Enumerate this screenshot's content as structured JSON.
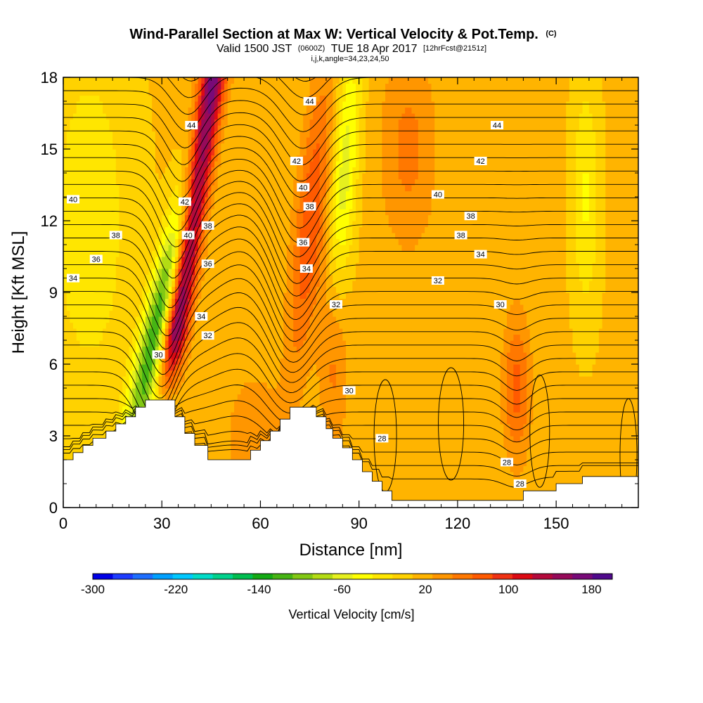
{
  "title": {
    "main": "Wind-Parallel Section at Max W: Vertical Velocity & Pot.Temp.",
    "main_suffix": "(C)",
    "valid_a": "Valid 1500 JST",
    "valid_b": "(0600Z)",
    "valid_c": "TUE 18 Apr 2017",
    "valid_d": "[12hrFcst@2151z]",
    "params": "i,j,k,angle=34,23,24,50"
  },
  "chart_data": {
    "type": "heatmap",
    "xlabel": "Distance [nm]",
    "ylabel": "Height [Kft MSL]",
    "xlim": [
      0,
      175
    ],
    "ylim": [
      0,
      18
    ],
    "x_ticks": [
      0,
      30,
      60,
      90,
      120,
      150
    ],
    "x_tick_labels": [
      "0",
      "30",
      "60",
      "90",
      "120",
      "150"
    ],
    "y_ticks": [
      0,
      3,
      6,
      9,
      12,
      15,
      18
    ],
    "y_tick_labels": [
      "0",
      "3",
      "6",
      "9",
      "12",
      "15",
      "18"
    ],
    "colorbar": {
      "label": "Vertical Velocity [cm/s]",
      "min": -300,
      "max": 200,
      "tick_values": [
        -300,
        -220,
        -140,
        -60,
        20,
        100,
        180
      ],
      "tick_labels": [
        "-300",
        "-220",
        "-140",
        "-60",
        "20",
        "100",
        "180"
      ],
      "colors": [
        "#0000e6",
        "#1e3cff",
        "#1e6eff",
        "#00a0ff",
        "#00c8ff",
        "#00dcc8",
        "#00d28c",
        "#00be50",
        "#14aa14",
        "#46b414",
        "#82c814",
        "#b4dc14",
        "#e6f01e",
        "#ffff00",
        "#ffe600",
        "#ffd200",
        "#ffb400",
        "#ff9600",
        "#ff7800",
        "#ff5a00",
        "#f03214",
        "#dc0a14",
        "#b40a3c",
        "#960a5a",
        "#780a78",
        "#500a8c"
      ]
    },
    "vertical_velocity_bands": [
      {
        "name": "updraft",
        "center_nm": 38,
        "note": "strong updraft column up to ~190 cm/s"
      },
      {
        "name": "downdraft",
        "center_nm": 31,
        "note": "downdraft near -140 cm/s"
      },
      {
        "name": "updraft",
        "center_nm": 77,
        "note": "moderate updraft ~60 cm/s"
      },
      {
        "name": "downdraft",
        "center_nm": 87,
        "note": "weak downdraft ~-60 cm/s"
      },
      {
        "name": "updraft",
        "center_nm": 138,
        "note": "low-level updraft ~60 cm/s"
      }
    ],
    "terrain_kft": [
      [
        0,
        2.0
      ],
      [
        3,
        2.0
      ],
      [
        3,
        2.3
      ],
      [
        6,
        2.3
      ],
      [
        6,
        2.6
      ],
      [
        9,
        2.6
      ],
      [
        9,
        2.9
      ],
      [
        13,
        2.9
      ],
      [
        13,
        3.2
      ],
      [
        16,
        3.2
      ],
      [
        16,
        3.5
      ],
      [
        19,
        3.5
      ],
      [
        19,
        3.8
      ],
      [
        22,
        3.8
      ],
      [
        22,
        4.2
      ],
      [
        25,
        4.2
      ],
      [
        25,
        4.5
      ],
      [
        34,
        4.5
      ],
      [
        34,
        3.8
      ],
      [
        37,
        3.8
      ],
      [
        37,
        3.1
      ],
      [
        40,
        3.1
      ],
      [
        40,
        2.6
      ],
      [
        44,
        2.6
      ],
      [
        44,
        2.0
      ],
      [
        57,
        2.0
      ],
      [
        57,
        2.4
      ],
      [
        60,
        2.4
      ],
      [
        60,
        2.8
      ],
      [
        63,
        2.8
      ],
      [
        63,
        3.2
      ],
      [
        66,
        3.2
      ],
      [
        66,
        3.7
      ],
      [
        69,
        3.7
      ],
      [
        69,
        4.2
      ],
      [
        77,
        4.2
      ],
      [
        77,
        3.8
      ],
      [
        80,
        3.8
      ],
      [
        80,
        3.3
      ],
      [
        82,
        3.3
      ],
      [
        82,
        2.9
      ],
      [
        85,
        2.9
      ],
      [
        85,
        2.5
      ],
      [
        88,
        2.5
      ],
      [
        88,
        2.0
      ],
      [
        91,
        2.0
      ],
      [
        91,
        1.5
      ],
      [
        94,
        1.5
      ],
      [
        94,
        1.1
      ],
      [
        97,
        1.1
      ],
      [
        97,
        0.7
      ],
      [
        100,
        0.7
      ],
      [
        100,
        0.3
      ],
      [
        140,
        0.3
      ],
      [
        140,
        0.7
      ],
      [
        150,
        0.7
      ],
      [
        150,
        1.0
      ],
      [
        158,
        1.0
      ],
      [
        158,
        1.3
      ],
      [
        175,
        1.3
      ]
    ],
    "theta_contour_labels": [
      {
        "label": "40",
        "x": 3,
        "y": 12.9
      },
      {
        "label": "38",
        "x": 16,
        "y": 11.4
      },
      {
        "label": "36",
        "x": 10,
        "y": 10.4
      },
      {
        "label": "34",
        "x": 3,
        "y": 9.6
      },
      {
        "label": "44",
        "x": 39,
        "y": 16.0
      },
      {
        "label": "42",
        "x": 37,
        "y": 12.8
      },
      {
        "label": "40",
        "x": 38,
        "y": 11.4
      },
      {
        "label": "38",
        "x": 44,
        "y": 11.8
      },
      {
        "label": "36",
        "x": 44,
        "y": 10.2
      },
      {
        "label": "34",
        "x": 42,
        "y": 8.0
      },
      {
        "label": "32",
        "x": 44,
        "y": 7.2
      },
      {
        "label": "30",
        "x": 29,
        "y": 6.4
      },
      {
        "label": "44",
        "x": 75,
        "y": 17.0
      },
      {
        "label": "42",
        "x": 71,
        "y": 14.5
      },
      {
        "label": "40",
        "x": 73,
        "y": 13.4
      },
      {
        "label": "38",
        "x": 75,
        "y": 12.6
      },
      {
        "label": "36",
        "x": 73,
        "y": 11.1
      },
      {
        "label": "34",
        "x": 74,
        "y": 10.0
      },
      {
        "label": "32",
        "x": 83,
        "y": 8.5
      },
      {
        "label": "30",
        "x": 87,
        "y": 4.9
      },
      {
        "label": "28",
        "x": 97,
        "y": 2.9
      },
      {
        "label": "44",
        "x": 132,
        "y": 16.0
      },
      {
        "label": "42",
        "x": 127,
        "y": 14.5
      },
      {
        "label": "40",
        "x": 114,
        "y": 13.1
      },
      {
        "label": "38",
        "x": 124,
        "y": 12.2
      },
      {
        "label": "38",
        "x": 121,
        "y": 11.4
      },
      {
        "label": "34",
        "x": 127,
        "y": 10.6
      },
      {
        "label": "32",
        "x": 114,
        "y": 9.5
      },
      {
        "label": "30",
        "x": 133,
        "y": 8.5
      },
      {
        "label": "28",
        "x": 135,
        "y": 1.9
      },
      {
        "label": "28",
        "x": 139,
        "y": 1.0
      }
    ]
  }
}
